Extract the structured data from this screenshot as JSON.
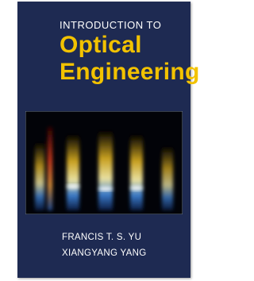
{
  "cover": {
    "series_label": "INTRODUCTION TO",
    "title_line1": "Optical",
    "title_line2": "Engineering",
    "authors": [
      "FRANCIS T. S. YU",
      "XIANGYANG YANG"
    ]
  }
}
